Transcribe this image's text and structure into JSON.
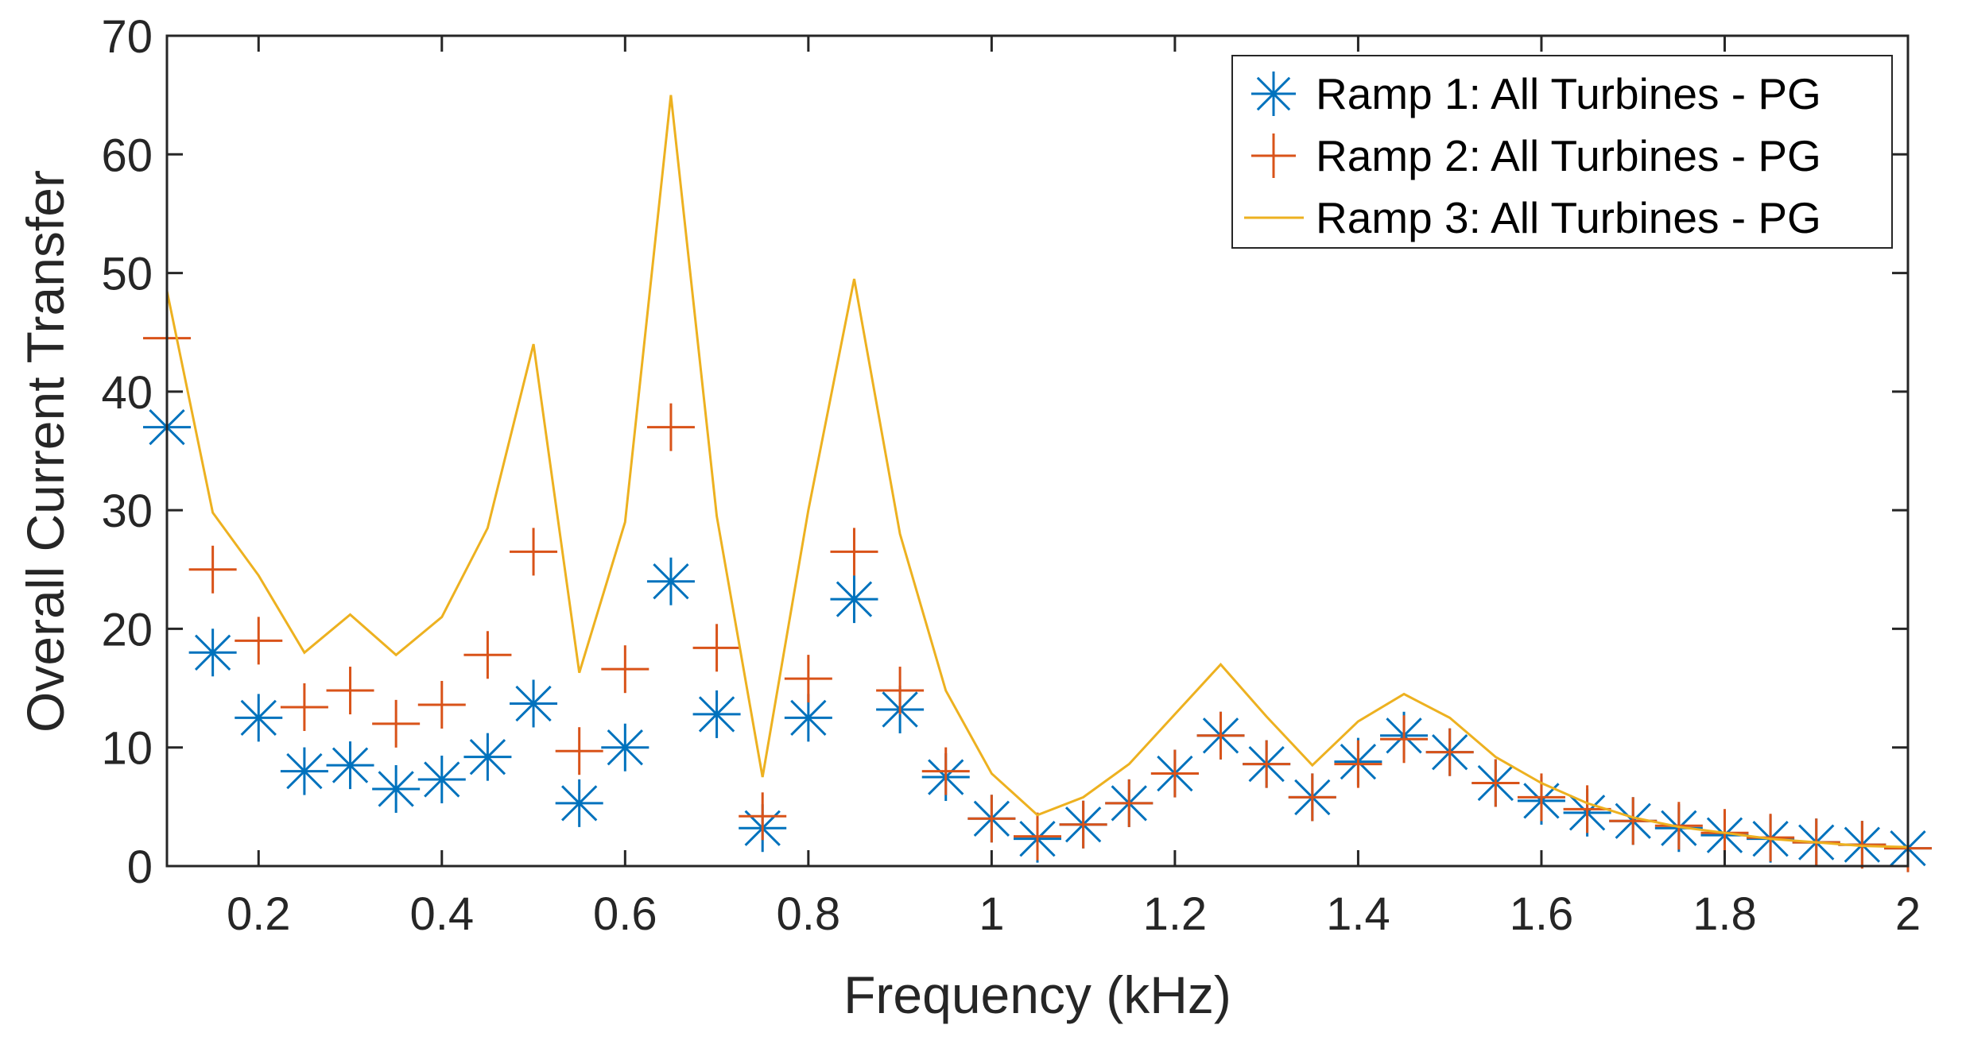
{
  "chart_data": {
    "type": "scatter",
    "title": "",
    "xlabel": "Frequency (kHz)",
    "ylabel": "Overall Current Transfer",
    "xlim": [
      0.1,
      2.0
    ],
    "ylim": [
      0,
      70
    ],
    "xticks": [
      0.2,
      0.4,
      0.6,
      0.8,
      1.0,
      1.2,
      1.4,
      1.6,
      1.8,
      2.0
    ],
    "xtick_labels": [
      "0.2",
      "0.4",
      "0.6",
      "0.8",
      "1",
      "1.2",
      "1.4",
      "1.6",
      "1.8",
      "2"
    ],
    "yticks": [
      0,
      10,
      20,
      30,
      40,
      50,
      60,
      70
    ],
    "ytick_labels": [
      "0",
      "10",
      "20",
      "30",
      "40",
      "50",
      "60",
      "70"
    ],
    "grid": false,
    "legend_position": "top-right",
    "x": [
      0.1,
      0.15,
      0.2,
      0.25,
      0.3,
      0.35,
      0.4,
      0.45,
      0.5,
      0.55,
      0.6,
      0.65,
      0.7,
      0.75,
      0.8,
      0.85,
      0.9,
      0.95,
      1.0,
      1.05,
      1.1,
      1.15,
      1.2,
      1.25,
      1.3,
      1.35,
      1.4,
      1.45,
      1.5,
      1.55,
      1.6,
      1.65,
      1.7,
      1.75,
      1.8,
      1.85,
      1.9,
      1.95,
      2.0
    ],
    "series": [
      {
        "name": "Ramp 1: All Turbines - PG",
        "marker": "asterisk",
        "color": "#0072BD",
        "values": [
          37,
          18,
          12.5,
          8,
          8.5,
          6.5,
          7.3,
          9.2,
          13.7,
          5.3,
          10,
          24,
          12.8,
          3.2,
          12.5,
          22.5,
          13.2,
          7.5,
          4,
          2.3,
          3.5,
          5.3,
          7.8,
          11,
          8.6,
          5.8,
          8.8,
          11,
          9.6,
          7,
          5.5,
          4.5,
          3.8,
          3.2,
          2.6,
          2.3,
          2,
          1.8,
          1.5
        ]
      },
      {
        "name": "Ramp 2: All Turbines - PG",
        "marker": "plus",
        "color": "#D95319",
        "values": [
          44.5,
          25,
          19,
          13.4,
          14.8,
          12,
          13.6,
          17.8,
          26.5,
          9.7,
          16.6,
          37,
          18.4,
          4.2,
          15.8,
          26.5,
          14.8,
          8,
          4,
          2.5,
          3.5,
          5.3,
          7.8,
          11,
          8.6,
          5.8,
          8.6,
          10.7,
          9.6,
          7,
          5.8,
          4.8,
          3.8,
          3.4,
          2.8,
          2.4,
          2,
          1.8,
          1.5
        ]
      },
      {
        "name": "Ramp 3: All Turbines - PG",
        "marker": "line",
        "color": "#EDB120",
        "values": [
          48.5,
          29.8,
          24.5,
          18,
          21.2,
          17.8,
          21,
          28.5,
          44,
          16.3,
          29,
          65,
          29.5,
          7.5,
          30,
          49.5,
          28,
          14.8,
          7.8,
          4.3,
          5.8,
          8.6,
          12.8,
          17,
          12.6,
          8.5,
          12.2,
          14.5,
          12.5,
          9.2,
          7,
          5.3,
          4.1,
          3.3,
          2.8,
          2.3,
          2,
          1.7,
          1.6
        ]
      }
    ]
  }
}
